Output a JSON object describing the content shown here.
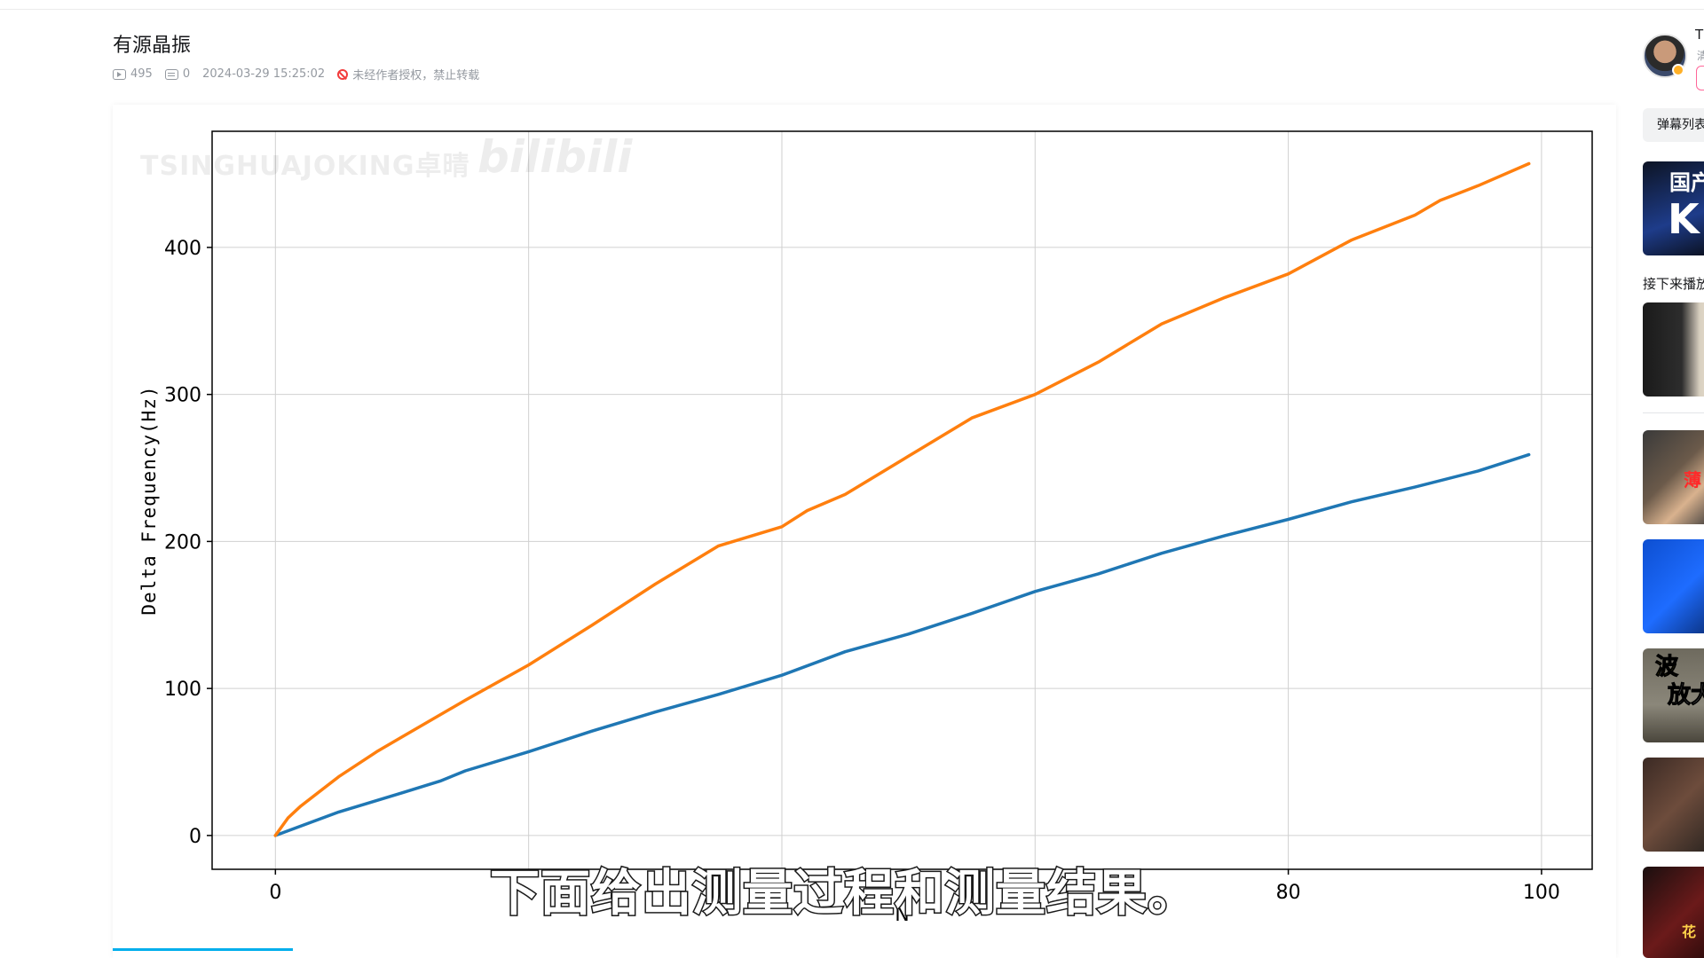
{
  "video": {
    "title": "有源晶振",
    "views": "495",
    "danmaku": "0",
    "date": "2024-03-29 15:25:02",
    "copyright_notice": "未经作者授权，禁止转载"
  },
  "player": {
    "watermark": "TSINGHUAJOKING卓晴",
    "watermark_logo": "bilibili",
    "subtitle": "下面给出测量过程和测量结果。"
  },
  "chart_data": {
    "type": "line",
    "xlabel": "N",
    "ylabel": "Delta Frequency(Hz)",
    "xlim": [
      -5,
      104
    ],
    "ylim": [
      -23,
      479
    ],
    "xticks": [
      0,
      20,
      40,
      60,
      80,
      100
    ],
    "yticks": [
      0,
      100,
      200,
      300,
      400
    ],
    "xtick_labels": [
      "0",
      "80",
      "100"
    ],
    "ytick_labels": [
      "0",
      "100",
      "200",
      "300",
      "400"
    ],
    "grid": true,
    "series": [
      {
        "color": "#ff7f0e",
        "x": [
          0,
          1,
          2,
          5,
          8,
          10,
          15,
          20,
          25,
          30,
          35,
          40,
          42,
          45,
          50,
          55,
          60,
          65,
          70,
          75,
          80,
          85,
          90,
          92,
          95,
          99
        ],
        "y": [
          0,
          12,
          20,
          40,
          57,
          67,
          92,
          116,
          143,
          171,
          197,
          210,
          221,
          232,
          258,
          284,
          300,
          322,
          348,
          366,
          382,
          405,
          422,
          432,
          442,
          457
        ]
      },
      {
        "color": "#1f77b4",
        "x": [
          0,
          5,
          10,
          13,
          15,
          20,
          25,
          30,
          35,
          40,
          45,
          50,
          55,
          60,
          65,
          70,
          75,
          80,
          85,
          90,
          95,
          99
        ],
        "y": [
          0,
          16,
          29,
          37,
          44,
          57,
          71,
          84,
          96,
          109,
          125,
          137,
          151,
          166,
          178,
          192,
          204,
          215,
          227,
          237,
          248,
          259
        ]
      }
    ]
  },
  "sidebar": {
    "up_name": "T",
    "up_desc": "清",
    "danmu_list_label": "弹幕列表",
    "next_up_label": "接下来播放",
    "thumb_texts": [
      "国产",
      "K",
      "薄",
      "波",
      "放大",
      "花"
    ]
  },
  "colors": {
    "orange": "#ff7f0e",
    "blue": "#1f77b4",
    "accent": "#00aeec",
    "pink": "#ff6699"
  }
}
